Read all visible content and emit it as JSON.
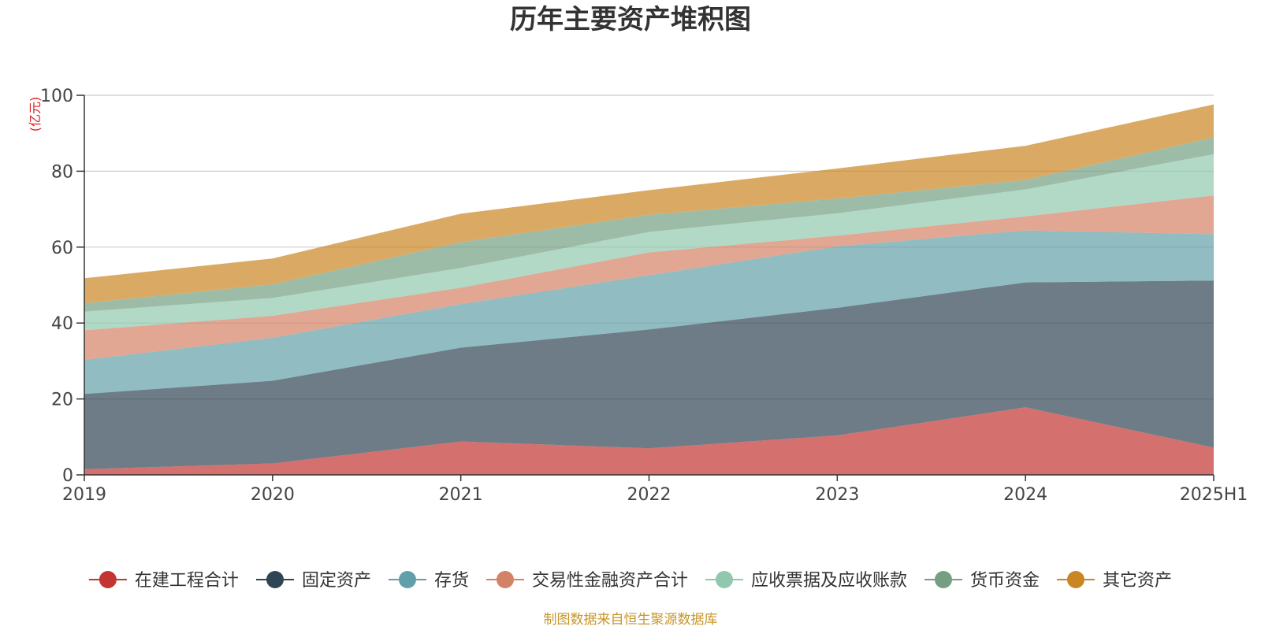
{
  "chart_data": {
    "type": "area",
    "stacked": true,
    "title": "历年主要资产堆积图",
    "unit_label": "(亿元)",
    "source": "制图数据来自恒生聚源数据库",
    "categories": [
      "2019",
      "2020",
      "2021",
      "2022",
      "2023",
      "2024",
      "2025H1"
    ],
    "ylim": [
      0,
      100
    ],
    "yticks": [
      0,
      20,
      40,
      60,
      80,
      100
    ],
    "grid": true,
    "legend_position": "bottom",
    "series": [
      {
        "name": "在建工程合计",
        "color": "#c23531",
        "values": [
          1.5,
          3.0,
          8.8,
          7.0,
          10.4,
          17.8,
          7.2
        ]
      },
      {
        "name": "固定资产",
        "color": "#2f4554",
        "values": [
          19.8,
          21.8,
          24.7,
          31.3,
          33.6,
          32.9,
          44.0
        ]
      },
      {
        "name": "存货",
        "color": "#61a0a8",
        "values": [
          9.0,
          11.3,
          11.5,
          14.3,
          16.2,
          13.7,
          12.2
        ]
      },
      {
        "name": "交易性金融资产合计",
        "color": "#d48265",
        "values": [
          7.8,
          5.8,
          4.3,
          6.0,
          2.8,
          3.7,
          10.2
        ]
      },
      {
        "name": "应收票据及应收账款",
        "color": "#91c7ae",
        "values": [
          4.9,
          4.7,
          5.2,
          5.4,
          5.9,
          7.1,
          10.9
        ]
      },
      {
        "name": "货币资金",
        "color": "#749f83",
        "values": [
          2.2,
          3.6,
          6.8,
          4.5,
          3.9,
          2.5,
          4.4
        ]
      },
      {
        "name": "其它资产",
        "color": "#ca8622",
        "values": [
          6.6,
          6.8,
          7.5,
          6.5,
          7.9,
          9.0,
          8.7
        ]
      }
    ]
  }
}
